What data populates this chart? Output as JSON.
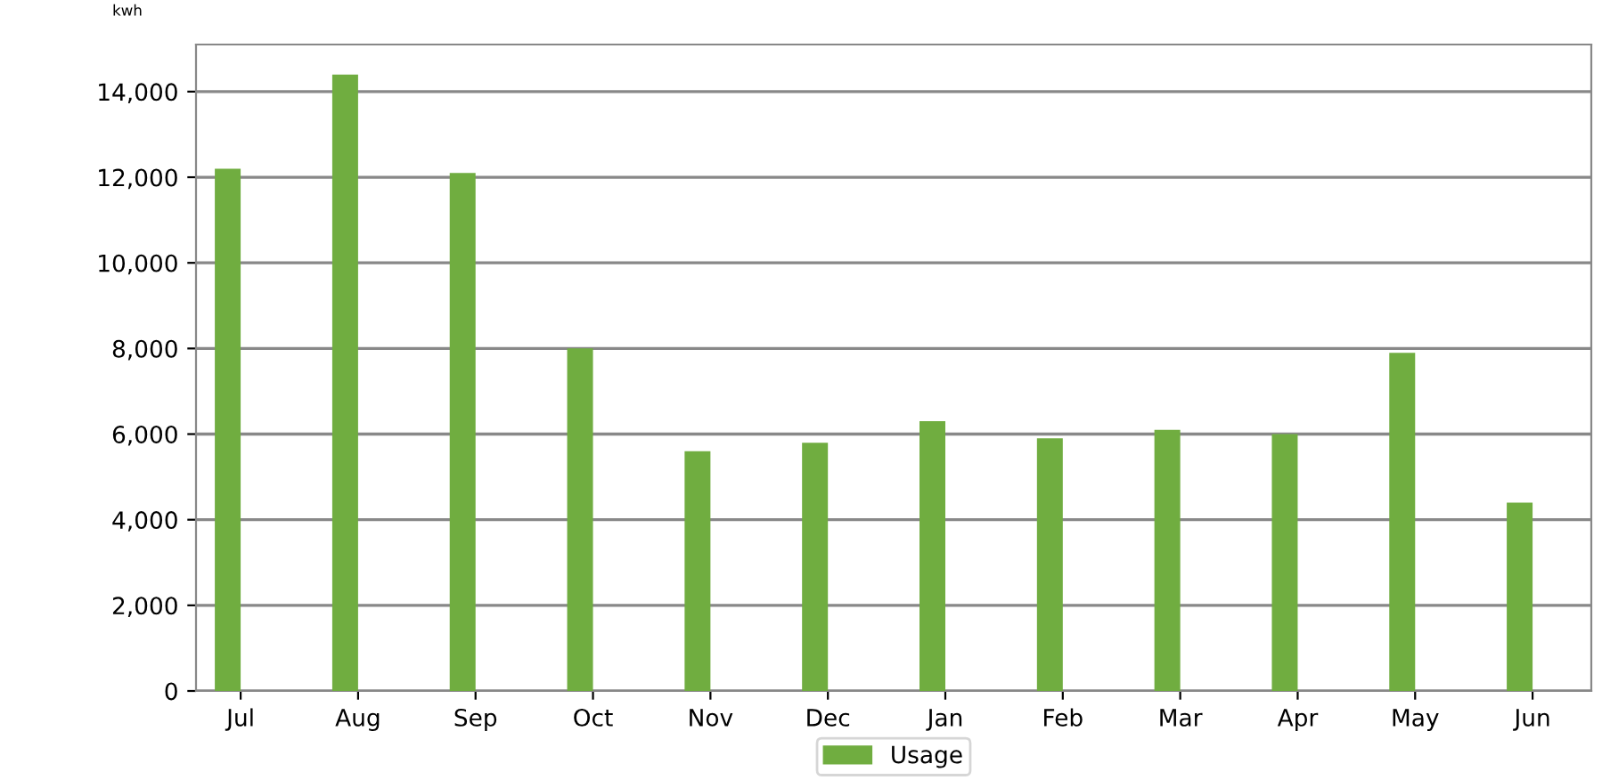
{
  "chart_data": {
    "type": "bar",
    "ylabel": "kwh",
    "categories": [
      "Jul",
      "Aug",
      "Sep",
      "Oct",
      "Nov",
      "Dec",
      "Jan",
      "Feb",
      "Mar",
      "Apr",
      "May",
      "Jun"
    ],
    "series": [
      {
        "name": "Usage",
        "color": "#70ad40",
        "values": [
          12200,
          14400,
          12100,
          8000,
          5600,
          5800,
          6300,
          5900,
          6100,
          6000,
          7900,
          4400
        ]
      }
    ],
    "ylim": [
      0,
      15100
    ],
    "yticks": [
      {
        "value": 0,
        "label": "0"
      },
      {
        "value": 2000,
        "label": "2,000"
      },
      {
        "value": 4000,
        "label": "4,000"
      },
      {
        "value": 6000,
        "label": "6,000"
      },
      {
        "value": 8000,
        "label": "8,000"
      },
      {
        "value": 10000,
        "label": "10,000"
      },
      {
        "value": 12000,
        "label": "12,000"
      },
      {
        "value": 14000,
        "label": "14,000"
      }
    ],
    "grid": "y",
    "legend": "bottom"
  }
}
